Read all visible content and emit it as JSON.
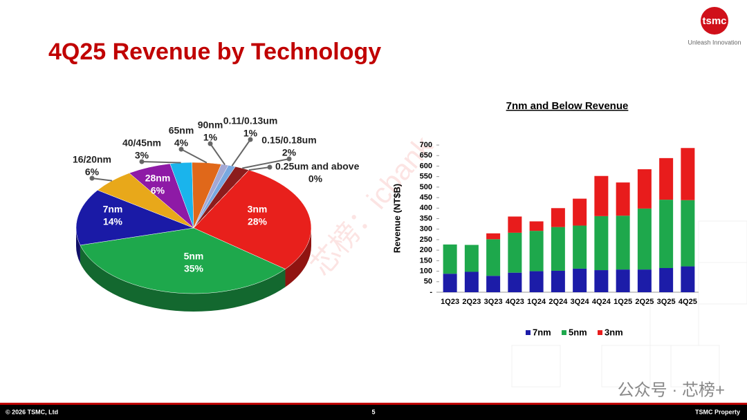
{
  "header": {
    "title": "4Q25 Revenue by Technology",
    "logo": "tsmc",
    "tagline": "Unleash Innovation"
  },
  "footer": {
    "copyright": "© 2026 TSMC, Ltd",
    "page": "5",
    "property": "TSMC Property"
  },
  "watermarks": [
    "芯榜：icbank",
    "公众号 · 芯榜+"
  ],
  "chart_data": [
    {
      "type": "pie",
      "categories": [
        "3nm",
        "5nm",
        "7nm",
        "16/20nm",
        "28nm",
        "40/45nm",
        "65nm",
        "90nm",
        "0.11/0.13um",
        "0.15/0.18um",
        "0.25um and above"
      ],
      "values": [
        28,
        35,
        14,
        6,
        6,
        3,
        4,
        1,
        1,
        2,
        0
      ],
      "value_labels": [
        "28%",
        "35%",
        "14%",
        "6%",
        "6%",
        "3%",
        "4%",
        "1%",
        "1%",
        "2%",
        "0%"
      ],
      "colors": [
        "#e8201c",
        "#1ea84c",
        "#1a1aa6",
        "#e8a81a",
        "#8e1aa6",
        "#1ab4ec",
        "#e0681a",
        "#a4a8d4",
        "#78a8e0",
        "#8c1c1c",
        "#bdbdbd"
      ]
    },
    {
      "type": "bar",
      "stacked": true,
      "title": "7nm and Below Revenue",
      "y_label": "Revenue (NT$B)",
      "categories": [
        "1Q23",
        "2Q23",
        "3Q23",
        "4Q23",
        "1Q24",
        "2Q24",
        "3Q24",
        "4Q24",
        "1Q25",
        "2Q25",
        "3Q25",
        "4Q25"
      ],
      "series": [
        {
          "name": "7nm",
          "color": "#1c1ca8",
          "values": [
            88,
            97,
            78,
            93,
            100,
            102,
            112,
            105,
            108,
            108,
            115,
            123
          ]
        },
        {
          "name": "5nm",
          "color": "#1ea84c",
          "values": [
            139,
            128,
            174,
            190,
            192,
            208,
            205,
            257,
            256,
            290,
            325,
            315
          ]
        },
        {
          "name": "3nm",
          "color": "#e81c1c",
          "values": [
            0,
            0,
            28,
            77,
            45,
            90,
            128,
            191,
            158,
            187,
            198,
            248
          ]
        }
      ],
      "ylim": [
        0,
        700
      ],
      "yticks": [
        {
          "value": 0,
          "label": "-"
        },
        50,
        100,
        150,
        200,
        250,
        300,
        350,
        400,
        450,
        500,
        550,
        600,
        650,
        700
      ]
    }
  ]
}
